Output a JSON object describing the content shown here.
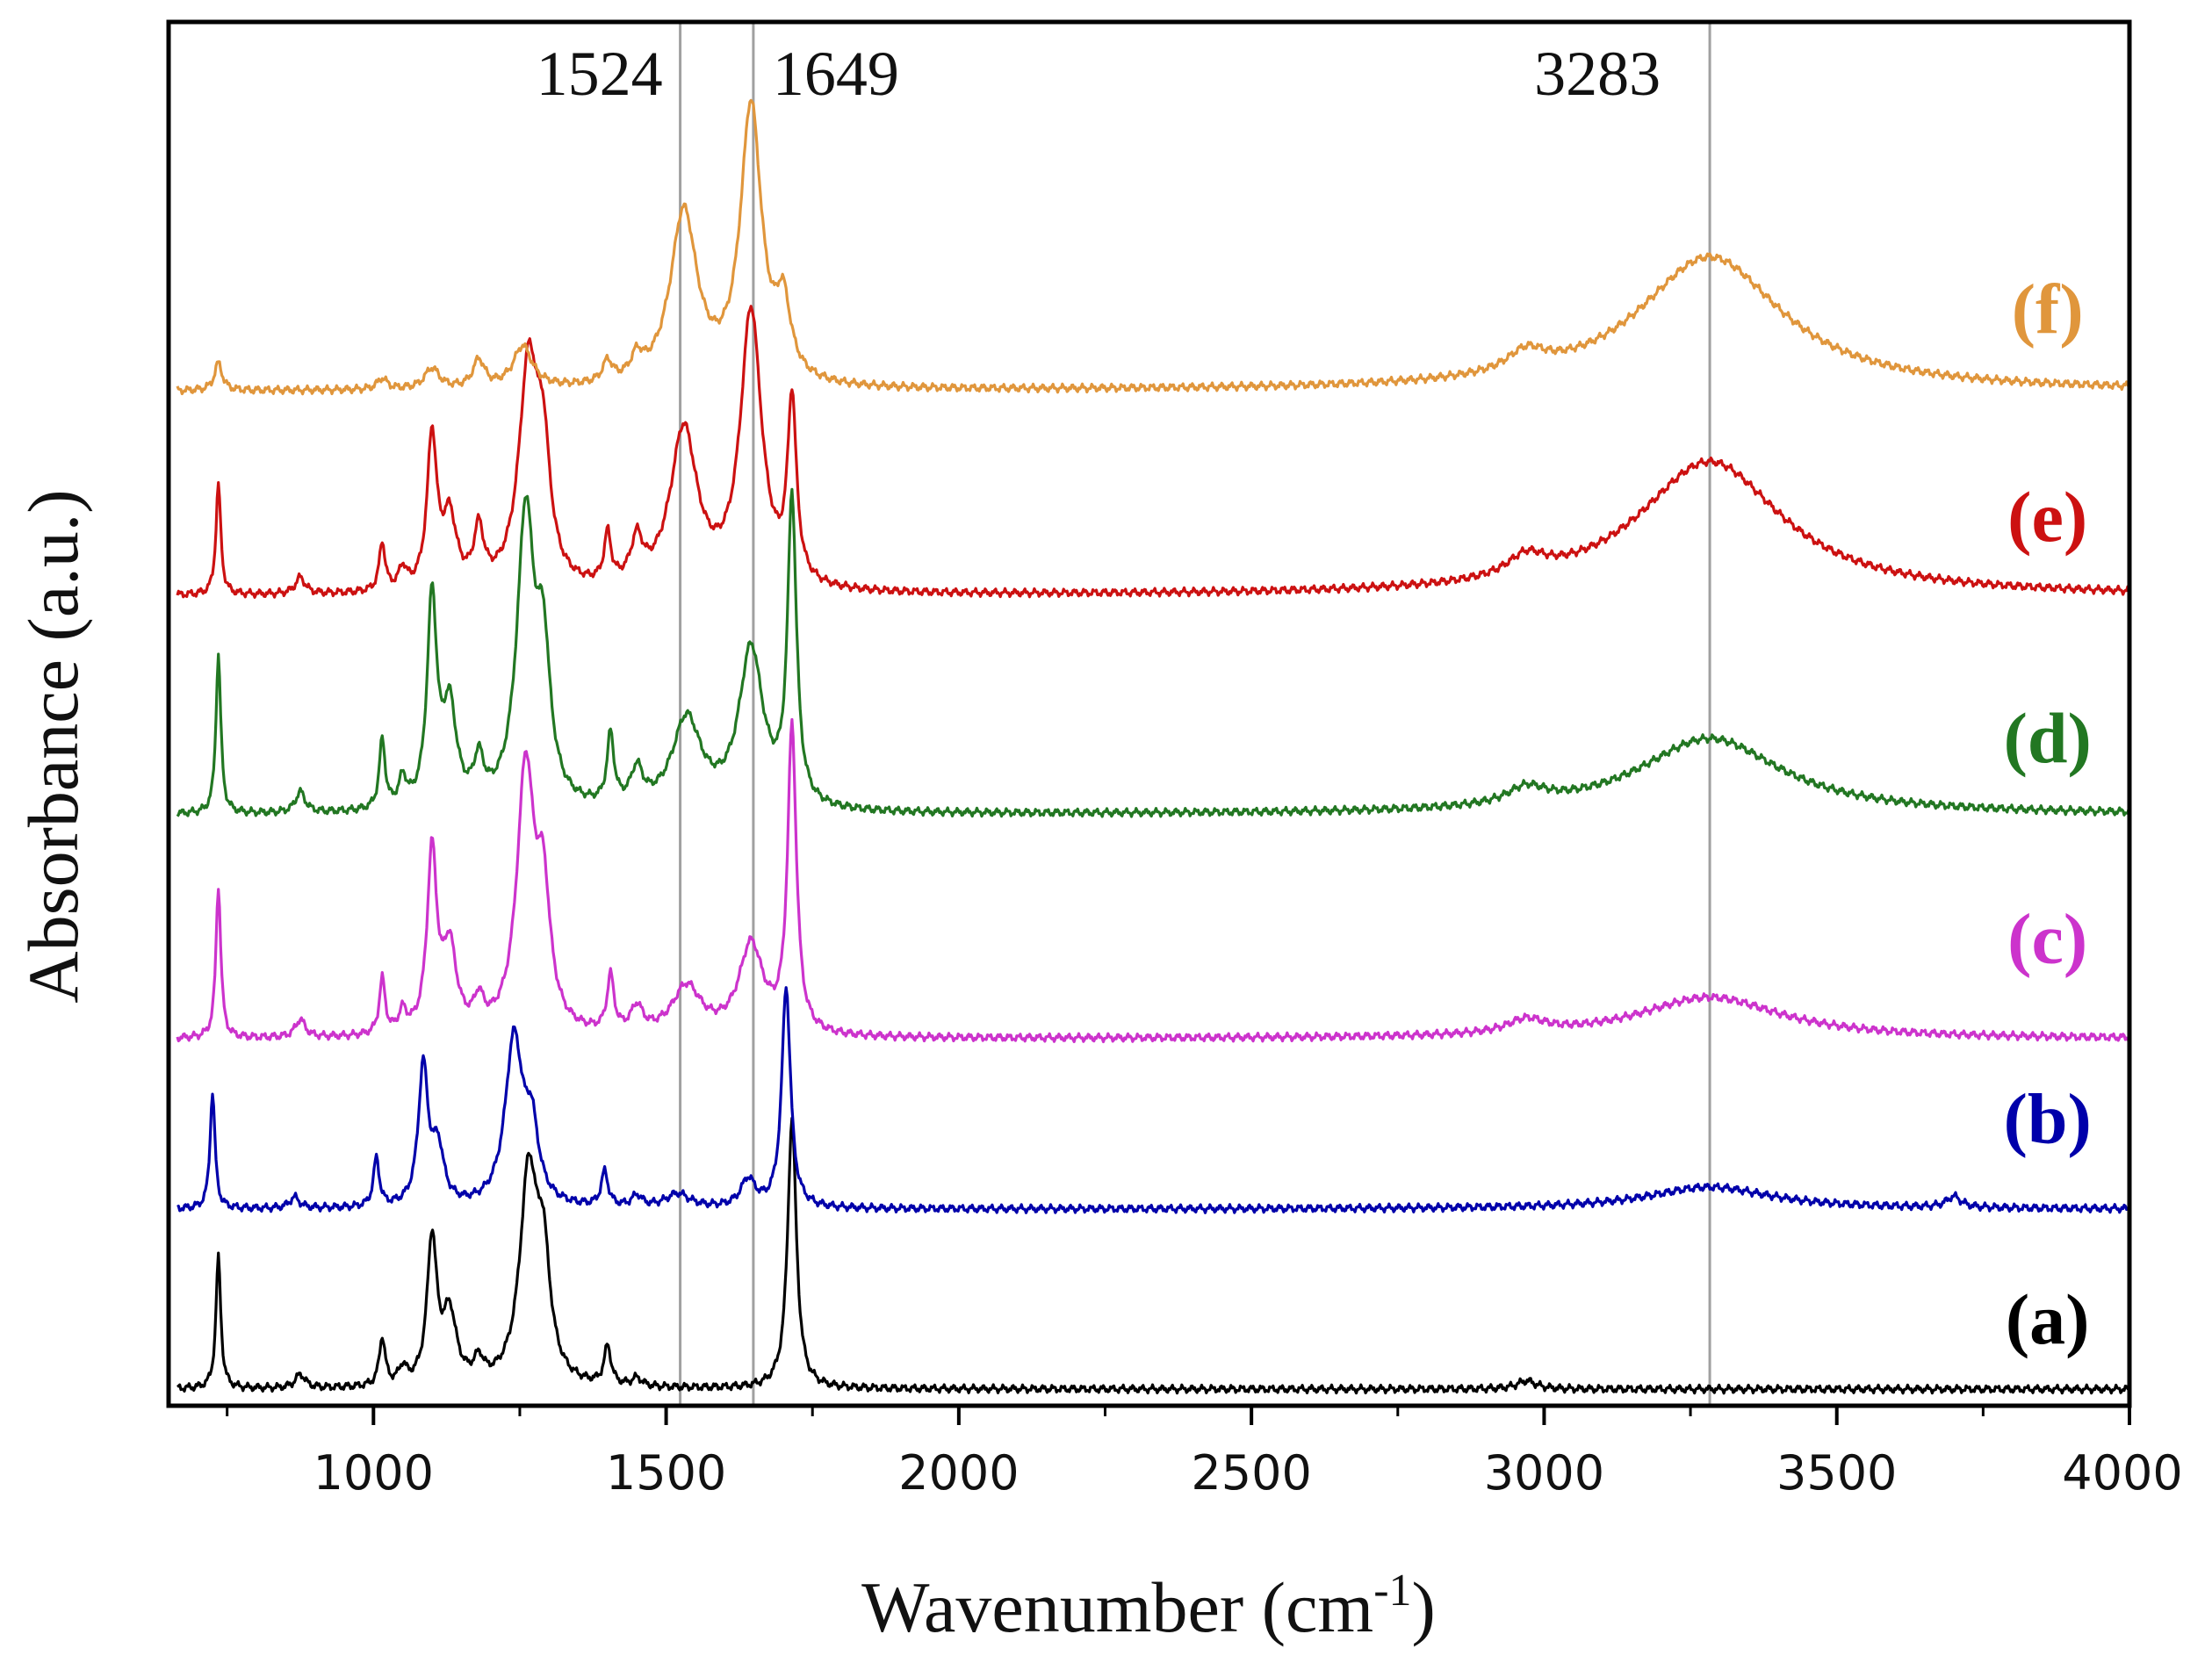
{
  "chart_data": {
    "type": "line",
    "title": "",
    "xlabel": "Wavenumber (cm",
    "xlabel_sup": "-1",
    "xlabel_end": ")",
    "ylabel": "Absorbance (a.u.)",
    "xlim": [
      650,
      4000
    ],
    "ylim": [
      0,
      1
    ],
    "x_ticks": [
      1000,
      1500,
      2000,
      2500,
      3000,
      3500,
      4000
    ],
    "x_tick_labels": [
      "1000",
      "1500",
      "2000",
      "2500",
      "3000",
      "3500",
      "4000"
    ],
    "reference_lines": [
      {
        "x": 1524,
        "label": "1524",
        "color": "#a0a0a0"
      },
      {
        "x": 1649,
        "label": "1649",
        "color": "#a0a0a0"
      },
      {
        "x": 3283,
        "label": "3283",
        "color": "#a0a0a0"
      }
    ],
    "series": [
      {
        "name": "(a)",
        "color": "#000000",
        "baseline": 0.012,
        "peaks": [
          [
            735,
            0.095,
            5
          ],
          [
            875,
            0.01,
            10
          ],
          [
            1015,
            0.035,
            6
          ],
          [
            1050,
            0.012,
            8
          ],
          [
            1100,
            0.105,
            10
          ],
          [
            1130,
            0.05,
            14
          ],
          [
            1180,
            0.015,
            10
          ],
          [
            1265,
            0.15,
            18
          ],
          [
            1290,
            0.08,
            14
          ],
          [
            1400,
            0.028,
            7
          ],
          [
            1450,
            0.006,
            10
          ],
          [
            1715,
            0.195,
            9
          ],
          [
            2970,
            0.006,
            20
          ]
        ],
        "label_at": [
          3860,
          0.045
        ]
      },
      {
        "name": "(b)",
        "color": "#0000aa",
        "baseline": 0.142,
        "peaks": [
          [
            725,
            0.085,
            5
          ],
          [
            865,
            0.008,
            10
          ],
          [
            1005,
            0.035,
            6
          ],
          [
            1085,
            0.1,
            10
          ],
          [
            1110,
            0.04,
            12
          ],
          [
            1240,
            0.12,
            18
          ],
          [
            1270,
            0.05,
            14
          ],
          [
            1395,
            0.025,
            7
          ],
          [
            1450,
            0.008,
            10
          ],
          [
            1520,
            0.01,
            25
          ],
          [
            1640,
            0.02,
            15
          ],
          [
            1705,
            0.16,
            9
          ],
          [
            3283,
            0.016,
            130
          ],
          [
            3700,
            0.008,
            15
          ]
        ],
        "label_at": [
          3860,
          0.19
        ]
      },
      {
        "name": "(c)",
        "color": "#cc33cc",
        "baseline": 0.265,
        "peaks": [
          [
            735,
            0.11,
            5
          ],
          [
            875,
            0.013,
            10
          ],
          [
            1015,
            0.04,
            6
          ],
          [
            1050,
            0.015,
            8
          ],
          [
            1100,
            0.13,
            10
          ],
          [
            1130,
            0.06,
            14
          ],
          [
            1180,
            0.02,
            10
          ],
          [
            1260,
            0.19,
            18
          ],
          [
            1290,
            0.09,
            14
          ],
          [
            1405,
            0.04,
            7
          ],
          [
            1450,
            0.018,
            12
          ],
          [
            1535,
            0.035,
            30
          ],
          [
            1645,
            0.065,
            25
          ],
          [
            1715,
            0.22,
            9
          ],
          [
            2970,
            0.01,
            40
          ],
          [
            3283,
            0.03,
            150
          ]
        ],
        "label_at": [
          3860,
          0.32
        ]
      },
      {
        "name": "(d)",
        "color": "#227722",
        "baseline": 0.427,
        "peaks": [
          [
            735,
            0.115,
            5
          ],
          [
            875,
            0.015,
            10
          ],
          [
            1015,
            0.05,
            6
          ],
          [
            1050,
            0.02,
            8
          ],
          [
            1100,
            0.15,
            10
          ],
          [
            1130,
            0.07,
            14
          ],
          [
            1180,
            0.03,
            10
          ],
          [
            1260,
            0.21,
            18
          ],
          [
            1290,
            0.1,
            14
          ],
          [
            1405,
            0.05,
            7
          ],
          [
            1450,
            0.025,
            12
          ],
          [
            1535,
            0.065,
            30
          ],
          [
            1645,
            0.115,
            25
          ],
          [
            1715,
            0.22,
            9
          ],
          [
            2970,
            0.012,
            40
          ],
          [
            3283,
            0.055,
            150
          ]
        ],
        "label_at": [
          3860,
          0.465
        ]
      },
      {
        "name": "(e)",
        "color": "#cc1111",
        "baseline": 0.585,
        "peaks": [
          [
            735,
            0.08,
            5
          ],
          [
            875,
            0.012,
            10
          ],
          [
            1015,
            0.035,
            6
          ],
          [
            1050,
            0.015,
            8
          ],
          [
            1100,
            0.11,
            10
          ],
          [
            1130,
            0.05,
            14
          ],
          [
            1180,
            0.04,
            10
          ],
          [
            1265,
            0.16,
            20
          ],
          [
            1290,
            0.08,
            14
          ],
          [
            1400,
            0.035,
            7
          ],
          [
            1450,
            0.03,
            12
          ],
          [
            1530,
            0.115,
            28
          ],
          [
            1645,
            0.2,
            22
          ],
          [
            1715,
            0.13,
            9
          ],
          [
            2970,
            0.015,
            40
          ],
          [
            3283,
            0.097,
            150
          ]
        ],
        "label_at": [
          3860,
          0.625
        ]
      },
      {
        "name": "(f)",
        "color": "#e0963c",
        "baseline": 0.733,
        "peaks": [
          [
            735,
            0.02,
            8
          ],
          [
            1015,
            0.008,
            10
          ],
          [
            1100,
            0.015,
            15
          ],
          [
            1180,
            0.02,
            12
          ],
          [
            1255,
            0.03,
            20
          ],
          [
            1400,
            0.015,
            10
          ],
          [
            1450,
            0.015,
            12
          ],
          [
            1530,
            0.125,
            28
          ],
          [
            1645,
            0.2,
            22
          ],
          [
            1700,
            0.05,
            15
          ],
          [
            2970,
            0.015,
            40
          ],
          [
            3283,
            0.097,
            150
          ]
        ],
        "label_at": [
          3860,
          0.775
        ]
      }
    ]
  }
}
